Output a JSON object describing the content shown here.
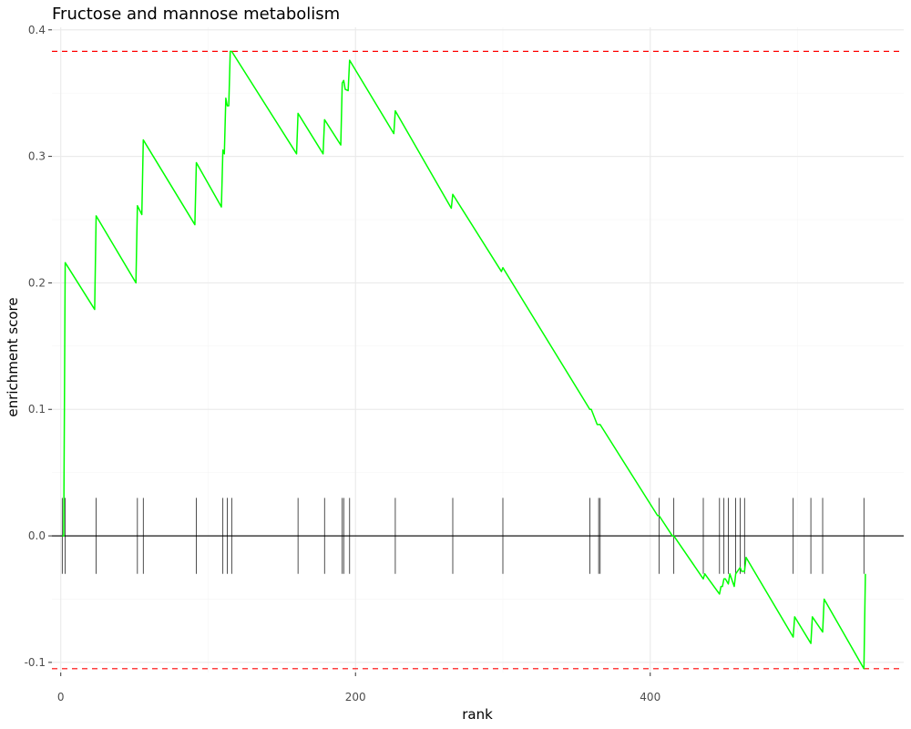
{
  "chart_data": {
    "type": "line",
    "title": "Fructose and mannose metabolism",
    "xlabel": "rank",
    "ylabel": "enrichment score",
    "xlim": [
      -6,
      572
    ],
    "ylim": [
      -0.108,
      0.402
    ],
    "x_ticks": [
      0,
      200,
      400
    ],
    "x_tick_labels": [
      "0",
      "200",
      "400"
    ],
    "y_ticks": [
      -0.1,
      0.0,
      0.1,
      0.2,
      0.3,
      0.4
    ],
    "y_tick_labels": [
      "-0.1",
      "0.0",
      "0.1",
      "0.2",
      "0.3",
      "0.4"
    ],
    "grid": true,
    "reference_lines": {
      "max_es": 0.383,
      "min_es": -0.105,
      "zero": 0.0
    },
    "colors": {
      "curve": "#00ff00",
      "reference": "#ff0000",
      "zero": "#000000",
      "rug": "#222222"
    },
    "series": [
      {
        "x": [
          1,
          2,
          3,
          23,
          24,
          51,
          52,
          55,
          56,
          91,
          92,
          109,
          110,
          111,
          112,
          113,
          114,
          115,
          116,
          160,
          161,
          178,
          179,
          190,
          191,
          192,
          193,
          195,
          196,
          226,
          227,
          265,
          266,
          299,
          300,
          359,
          360,
          364,
          365,
          366,
          405,
          406,
          415,
          416,
          436,
          437,
          447,
          448,
          449,
          450,
          451,
          453,
          454,
          457,
          458,
          461,
          462,
          464,
          465,
          497,
          498,
          509,
          510,
          517,
          518,
          545,
          546
        ],
        "y": [
          0.0,
          0.0,
          0.216,
          0.179,
          0.253,
          0.2,
          0.261,
          0.254,
          0.313,
          0.246,
          0.295,
          0.26,
          0.305,
          0.302,
          0.346,
          0.34,
          0.34,
          0.383,
          0.383,
          0.302,
          0.334,
          0.302,
          0.329,
          0.309,
          0.358,
          0.36,
          0.353,
          0.352,
          0.376,
          0.318,
          0.336,
          0.259,
          0.27,
          0.209,
          0.212,
          0.1,
          0.1,
          0.088,
          0.088,
          0.088,
          0.016,
          0.016,
          0.0,
          0.0,
          -0.034,
          -0.03,
          -0.046,
          -0.04,
          -0.04,
          -0.034,
          -0.034,
          -0.038,
          -0.03,
          -0.04,
          -0.03,
          -0.025,
          -0.028,
          -0.028,
          -0.017,
          -0.08,
          -0.064,
          -0.085,
          -0.064,
          -0.076,
          -0.05,
          -0.105,
          -0.03
        ]
      }
    ],
    "hit_ranks": [
      1,
      3,
      24,
      52,
      56,
      92,
      110,
      113,
      116,
      161,
      179,
      191,
      192,
      196,
      227,
      266,
      300,
      359,
      365,
      366,
      406,
      416,
      436,
      447,
      450,
      453,
      458,
      461,
      464,
      497,
      509,
      517,
      545
    ]
  }
}
